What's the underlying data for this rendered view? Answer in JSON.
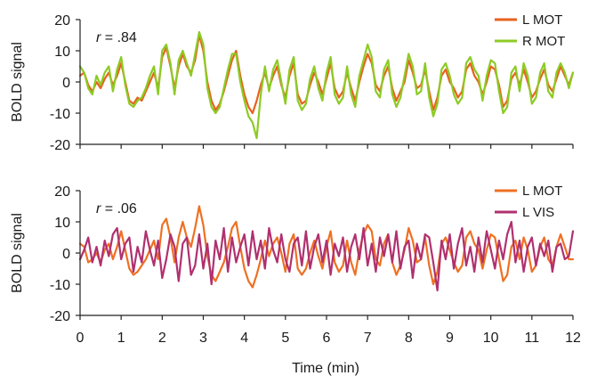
{
  "chart_data": [
    {
      "type": "line",
      "ylabel": "BOLD signal",
      "annotation": {
        "symbol": "r",
        "value": " = .84"
      },
      "ylim": [
        -20,
        20
      ],
      "yticks": [
        -20,
        -10,
        0,
        10,
        20
      ],
      "legend_position": "top-right",
      "series": [
        {
          "name": "L MOT",
          "color": "#e8621e",
          "x": [
            0,
            0.1,
            0.2,
            0.3,
            0.4,
            0.5,
            0.6,
            0.7,
            0.8,
            0.9,
            1.0,
            1.1,
            1.2,
            1.3,
            1.4,
            1.5,
            1.6,
            1.7,
            1.8,
            1.9,
            2.0,
            2.1,
            2.2,
            2.3,
            2.4,
            2.5,
            2.6,
            2.7,
            2.8,
            2.9,
            3.0,
            3.1,
            3.2,
            3.3,
            3.4,
            3.5,
            3.6,
            3.7,
            3.8,
            3.9,
            4.0,
            4.1,
            4.2,
            4.3,
            4.4,
            4.5,
            4.6,
            4.7,
            4.8,
            4.9,
            5.0,
            5.1,
            5.2,
            5.3,
            5.4,
            5.5,
            5.6,
            5.7,
            5.8,
            5.9,
            6.0,
            6.1,
            6.2,
            6.3,
            6.4,
            6.5,
            6.6,
            6.7,
            6.8,
            6.9,
            7.0,
            7.1,
            7.2,
            7.3,
            7.4,
            7.5,
            7.6,
            7.7,
            7.8,
            7.9,
            8.0,
            8.1,
            8.2,
            8.3,
            8.4,
            8.5,
            8.6,
            8.7,
            8.8,
            8.9,
            9.0,
            9.1,
            9.2,
            9.3,
            9.4,
            9.5,
            9.6,
            9.7,
            9.8,
            9.9,
            10.0,
            10.1,
            10.2,
            10.3,
            10.4,
            10.5,
            10.6,
            10.7,
            10.8,
            10.9,
            11.0,
            11.1,
            11.2,
            11.3,
            11.4,
            11.5,
            11.6,
            11.7,
            11.8,
            11.9,
            12.0
          ],
          "values": [
            2,
            3,
            -1,
            -3,
            0,
            -2,
            1,
            3,
            -1,
            2,
            6,
            0,
            -6,
            -7,
            -5,
            -6,
            -3,
            0,
            3,
            -2,
            8,
            11,
            5,
            -2,
            5,
            9,
            5,
            3,
            7,
            15,
            10,
            0,
            -6,
            -9,
            -7,
            -3,
            2,
            7,
            10,
            2,
            -4,
            -8,
            -10,
            -6,
            -1,
            3,
            -2,
            2,
            5,
            -1,
            -5,
            2,
            6,
            -4,
            -7,
            -6,
            -1,
            3,
            0,
            -4,
            1,
            6,
            -2,
            -5,
            -3,
            3,
            -2,
            -6,
            0,
            5,
            9,
            6,
            -1,
            -3,
            2,
            5,
            -2,
            -6,
            -3,
            0,
            7,
            3,
            -2,
            -1,
            4,
            -3,
            -9,
            -5,
            2,
            4,
            0,
            -2,
            -5,
            -3,
            4,
            6,
            2,
            0,
            -4,
            0,
            5,
            4,
            -1,
            -8,
            -6,
            1,
            3,
            -1,
            4,
            0,
            -5,
            -3,
            1,
            4,
            -1,
            -3,
            1,
            5,
            2,
            -1,
            3
          ]
        },
        {
          "name": "R MOT",
          "color": "#8ccb25",
          "x": [
            0,
            0.1,
            0.2,
            0.3,
            0.4,
            0.5,
            0.6,
            0.7,
            0.8,
            0.9,
            1.0,
            1.1,
            1.2,
            1.3,
            1.4,
            1.5,
            1.6,
            1.7,
            1.8,
            1.9,
            2.0,
            2.1,
            2.2,
            2.3,
            2.4,
            2.5,
            2.6,
            2.7,
            2.8,
            2.9,
            3.0,
            3.1,
            3.2,
            3.3,
            3.4,
            3.5,
            3.6,
            3.7,
            3.8,
            3.9,
            4.0,
            4.1,
            4.2,
            4.3,
            4.4,
            4.5,
            4.6,
            4.7,
            4.8,
            4.9,
            5.0,
            5.1,
            5.2,
            5.3,
            5.4,
            5.5,
            5.6,
            5.7,
            5.8,
            5.9,
            6.0,
            6.1,
            6.2,
            6.3,
            6.4,
            6.5,
            6.6,
            6.7,
            6.8,
            6.9,
            7.0,
            7.1,
            7.2,
            7.3,
            7.4,
            7.5,
            7.6,
            7.7,
            7.8,
            7.9,
            8.0,
            8.1,
            8.2,
            8.3,
            8.4,
            8.5,
            8.6,
            8.7,
            8.8,
            8.9,
            9.0,
            9.1,
            9.2,
            9.3,
            9.4,
            9.5,
            9.6,
            9.7,
            9.8,
            9.9,
            10.0,
            10.1,
            10.2,
            10.3,
            10.4,
            10.5,
            10.6,
            10.7,
            10.8,
            10.9,
            11.0,
            11.1,
            11.2,
            11.3,
            11.4,
            11.5,
            11.6,
            11.7,
            11.8,
            11.9,
            12.0
          ],
          "values": [
            5,
            3,
            -2,
            -4,
            2,
            -1,
            3,
            5,
            -3,
            4,
            8,
            -1,
            -7,
            -8,
            -6,
            -5,
            -2,
            2,
            5,
            -4,
            10,
            12,
            6,
            -4,
            7,
            10,
            6,
            2,
            9,
            16,
            12,
            -2,
            -8,
            -10,
            -8,
            -2,
            4,
            9,
            9,
            0,
            -6,
            -11,
            -13,
            -18,
            -4,
            5,
            -3,
            4,
            7,
            0,
            -7,
            4,
            8,
            -6,
            -9,
            -7,
            1,
            5,
            -2,
            -6,
            3,
            8,
            -4,
            -7,
            -5,
            5,
            -4,
            -8,
            2,
            7,
            12,
            8,
            -3,
            -5,
            4,
            7,
            -4,
            -8,
            -5,
            2,
            9,
            5,
            -4,
            -3,
            6,
            -5,
            -11,
            -7,
            4,
            6,
            2,
            -4,
            -7,
            -5,
            6,
            8,
            4,
            2,
            -6,
            2,
            7,
            6,
            -3,
            -10,
            -8,
            3,
            5,
            -3,
            6,
            2,
            -7,
            -5,
            3,
            6,
            -3,
            -5,
            3,
            6,
            3,
            -2,
            3
          ]
        }
      ]
    },
    {
      "type": "line",
      "xlabel": "Time (min)",
      "ylabel": "BOLD signal",
      "annotation": {
        "symbol": "r",
        "value": " = .06"
      },
      "xlim": [
        0,
        12
      ],
      "xticks": [
        0,
        1,
        2,
        3,
        4,
        5,
        6,
        7,
        8,
        9,
        10,
        11,
        12
      ],
      "ylim": [
        -20,
        20
      ],
      "yticks": [
        -20,
        -10,
        0,
        10,
        20
      ],
      "legend_position": "top-right",
      "series": [
        {
          "name": "L MOT",
          "color": "#ee7023",
          "x": [
            0,
            0.1,
            0.2,
            0.3,
            0.4,
            0.5,
            0.6,
            0.7,
            0.8,
            0.9,
            1.0,
            1.1,
            1.2,
            1.3,
            1.4,
            1.5,
            1.6,
            1.7,
            1.8,
            1.9,
            2.0,
            2.1,
            2.2,
            2.3,
            2.4,
            2.5,
            2.6,
            2.7,
            2.8,
            2.9,
            3.0,
            3.1,
            3.2,
            3.3,
            3.4,
            3.5,
            3.6,
            3.7,
            3.8,
            3.9,
            4.0,
            4.1,
            4.2,
            4.3,
            4.4,
            4.5,
            4.6,
            4.7,
            4.8,
            4.9,
            5.0,
            5.1,
            5.2,
            5.3,
            5.4,
            5.5,
            5.6,
            5.7,
            5.8,
            5.9,
            6.0,
            6.1,
            6.2,
            6.3,
            6.4,
            6.5,
            6.6,
            6.7,
            6.8,
            6.9,
            7.0,
            7.1,
            7.2,
            7.3,
            7.4,
            7.5,
            7.6,
            7.7,
            7.8,
            7.9,
            8.0,
            8.1,
            8.2,
            8.3,
            8.4,
            8.5,
            8.6,
            8.7,
            8.8,
            8.9,
            9.0,
            9.1,
            9.2,
            9.3,
            9.4,
            9.5,
            9.6,
            9.7,
            9.8,
            9.9,
            10.0,
            10.1,
            10.2,
            10.3,
            10.4,
            10.5,
            10.6,
            10.7,
            10.8,
            10.9,
            11.0,
            11.1,
            11.2,
            11.3,
            11.4,
            11.5,
            11.6,
            11.7,
            11.8,
            11.9,
            12.0
          ],
          "values": [
            3,
            2,
            -3,
            -2,
            0,
            -3,
            1,
            3,
            -2,
            2,
            7,
            1,
            -5,
            -7,
            -6,
            -4,
            -2,
            1,
            4,
            -2,
            9,
            11,
            5,
            -3,
            5,
            10,
            5,
            2,
            8,
            15,
            9,
            -1,
            -7,
            -9,
            -6,
            -3,
            2,
            8,
            10,
            2,
            -5,
            -9,
            -11,
            -7,
            -2,
            4,
            -1,
            3,
            5,
            0,
            -6,
            3,
            6,
            -5,
            -7,
            -5,
            0,
            4,
            -1,
            -5,
            2,
            7,
            -3,
            -6,
            -4,
            4,
            -3,
            -7,
            1,
            6,
            9,
            7,
            -2,
            -4,
            3,
            6,
            -3,
            -7,
            -4,
            1,
            8,
            4,
            -3,
            -2,
            5,
            -4,
            -10,
            -6,
            3,
            5,
            1,
            -3,
            -6,
            -4,
            5,
            7,
            3,
            1,
            -5,
            1,
            6,
            5,
            -2,
            -9,
            -7,
            2,
            4,
            -2,
            5,
            1,
            -6,
            -4,
            2,
            5,
            -2,
            -4,
            2,
            6,
            2,
            -2,
            -2
          ]
        },
        {
          "name": "L VIS",
          "color": "#b0306f",
          "x": [
            0,
            0.1,
            0.2,
            0.3,
            0.4,
            0.5,
            0.6,
            0.7,
            0.8,
            0.9,
            1.0,
            1.1,
            1.2,
            1.3,
            1.4,
            1.5,
            1.6,
            1.7,
            1.8,
            1.9,
            2.0,
            2.1,
            2.2,
            2.3,
            2.4,
            2.5,
            2.6,
            2.7,
            2.8,
            2.9,
            3.0,
            3.1,
            3.2,
            3.3,
            3.4,
            3.5,
            3.6,
            3.7,
            3.8,
            3.9,
            4.0,
            4.1,
            4.2,
            4.3,
            4.4,
            4.5,
            4.6,
            4.7,
            4.8,
            4.9,
            5.0,
            5.1,
            5.2,
            5.3,
            5.4,
            5.5,
            5.6,
            5.7,
            5.8,
            5.9,
            6.0,
            6.1,
            6.2,
            6.3,
            6.4,
            6.5,
            6.6,
            6.7,
            6.8,
            6.9,
            7.0,
            7.1,
            7.2,
            7.3,
            7.4,
            7.5,
            7.6,
            7.7,
            7.8,
            7.9,
            8.0,
            8.1,
            8.2,
            8.3,
            8.4,
            8.5,
            8.6,
            8.7,
            8.8,
            8.9,
            9.0,
            9.1,
            9.2,
            9.3,
            9.4,
            9.5,
            9.6,
            9.7,
            9.8,
            9.9,
            10.0,
            10.1,
            10.2,
            10.3,
            10.4,
            10.5,
            10.6,
            10.7,
            10.8,
            10.9,
            11.0,
            11.1,
            11.2,
            11.3,
            11.4,
            11.5,
            11.6,
            11.7,
            11.8,
            11.9,
            12.0
          ],
          "values": [
            -2,
            1,
            5,
            -3,
            2,
            -4,
            4,
            -1,
            6,
            8,
            -2,
            3,
            5,
            -6,
            2,
            -3,
            7,
            1,
            -4,
            4,
            -8,
            -2,
            6,
            2,
            -9,
            3,
            5,
            -7,
            -4,
            6,
            -5,
            3,
            -10,
            4,
            -2,
            8,
            -6,
            5,
            -3,
            2,
            6,
            -4,
            7,
            -2,
            4,
            -5,
            8,
            1,
            -3,
            6,
            -2,
            -6,
            3,
            5,
            -4,
            7,
            -5,
            2,
            6,
            -3,
            4,
            -7,
            3,
            -1,
            5,
            -6,
            2,
            6,
            -2,
            8,
            -4,
            3,
            -6,
            5,
            -1,
            6,
            -3,
            7,
            -5,
            2,
            4,
            -8,
            3,
            -2,
            6,
            5,
            -3,
            -12,
            4,
            -2,
            6,
            -5,
            3,
            8,
            -4,
            2,
            -6,
            5,
            -3,
            7,
            1,
            -5,
            4,
            -2,
            6,
            10,
            -3,
            4,
            -6,
            2,
            5,
            -4,
            3,
            -1,
            4,
            -6,
            2,
            3,
            -2,
            -1,
            7
          ]
        }
      ]
    }
  ]
}
